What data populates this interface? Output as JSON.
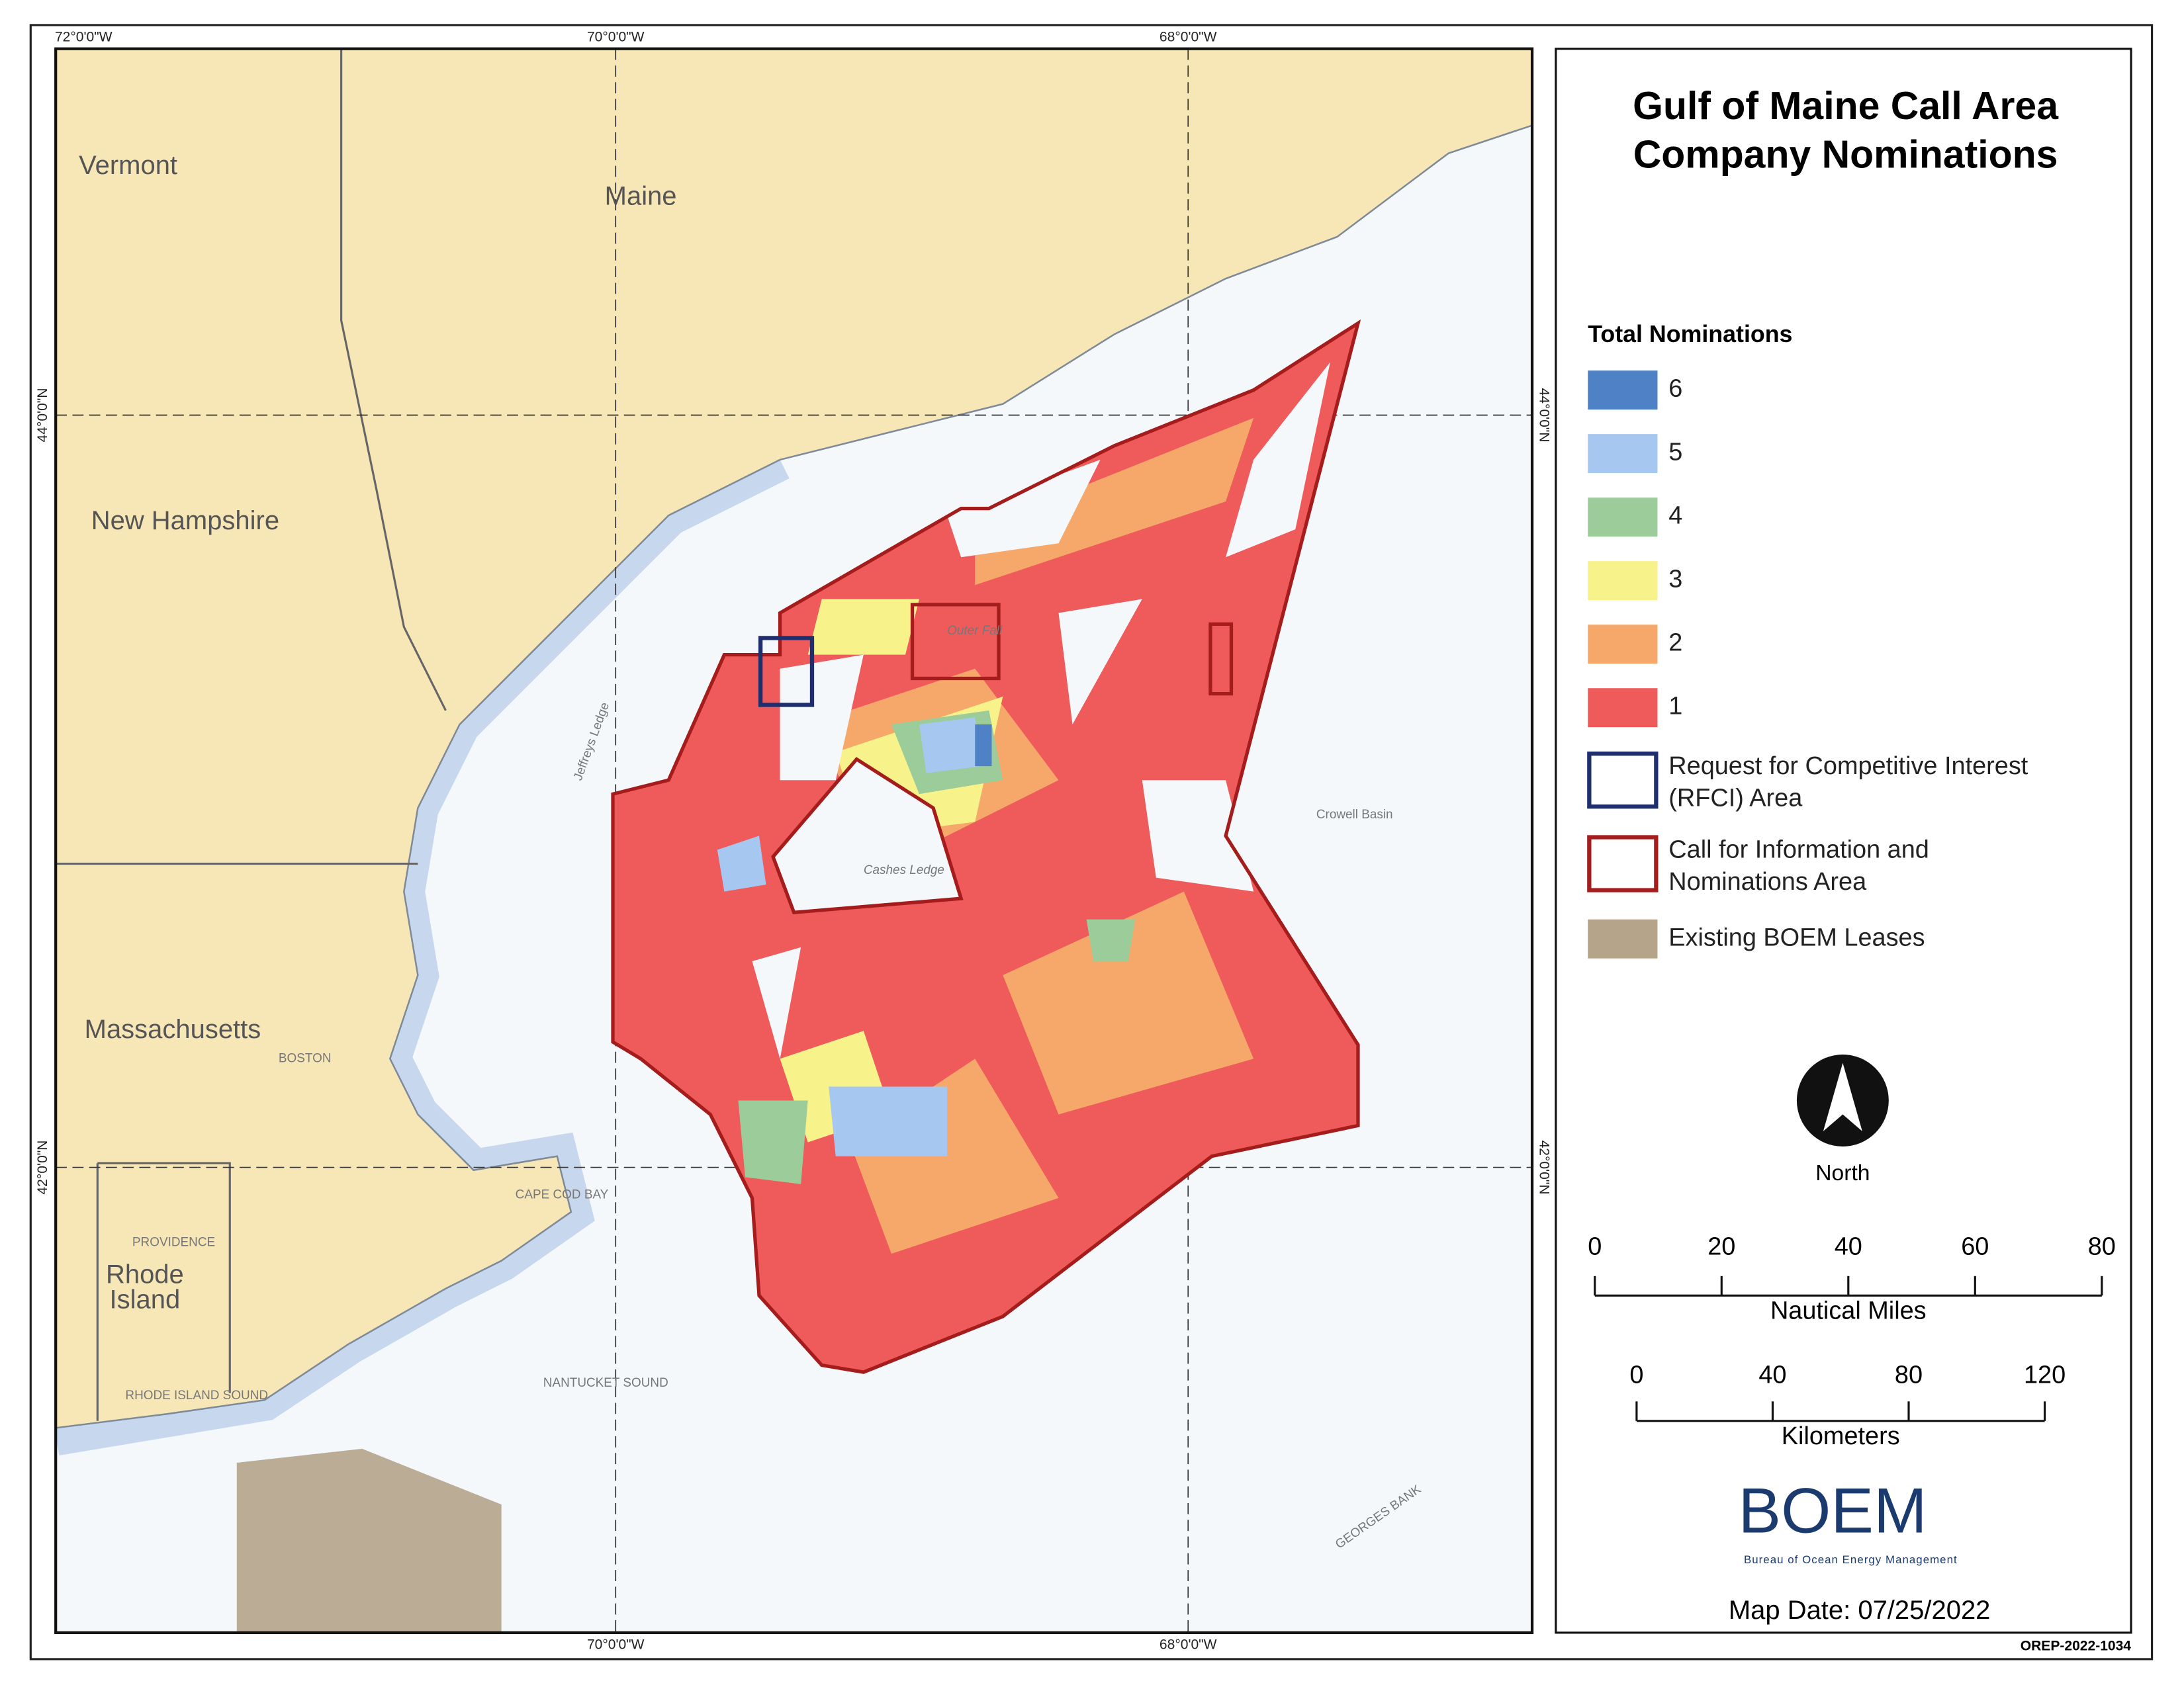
{
  "header": {
    "title_lines": [
      "Gulf of Maine Call Area",
      "Company Nominations"
    ]
  },
  "legend": {
    "heading": "Total Nominations",
    "nominations": [
      {
        "label": "6",
        "color": "#4f81c7"
      },
      {
        "label": "5",
        "color": "#a6c8f0"
      },
      {
        "label": "4",
        "color": "#9ccc9a"
      },
      {
        "label": "3",
        "color": "#f7f28a"
      },
      {
        "label": "2",
        "color": "#f6a86a"
      },
      {
        "label": "1",
        "color": "#ef5a5a"
      }
    ],
    "areas": [
      {
        "lines": [
          "Request for Competitive Interest",
          "(RFCI) Area"
        ],
        "stroke": "#1f2f6e"
      },
      {
        "lines": [
          "Call for Information and",
          "Nominations Area"
        ],
        "stroke": "#a51c1c"
      }
    ],
    "leases": {
      "label": "Existing BOEM Leases",
      "color": "#b5a48a"
    }
  },
  "north": "North",
  "scales": [
    {
      "label": "Nautical Miles",
      "ticks": [
        0,
        20,
        40,
        60,
        80
      ]
    },
    {
      "label": "Kilometers",
      "ticks": [
        0,
        40,
        80,
        120
      ]
    }
  ],
  "logo": {
    "name": "BOEM",
    "subtitle": "Bureau of Ocean Energy Management"
  },
  "map_date": "Map Date: 07/25/2022",
  "document_id": "OREP-2022-1034",
  "graticule": {
    "lon": [
      "72°0'0\"W",
      "70°0'0\"W",
      "68°0'0\"W"
    ],
    "lat": [
      "44°0'0\"N",
      "42°0'0\"N"
    ]
  },
  "places": {
    "states": [
      "Vermont",
      "Maine",
      "New Hampshire",
      "Massachusetts",
      "Rhode",
      "Island"
    ],
    "features": [
      "Cashes Ledge",
      "Crowell Basin",
      "Jeffreys Ledge",
      "Outer Fall",
      "BOSTON",
      "PROVIDENCE",
      "NANTUCKET SOUND",
      "RHODE ISLAND SOUND",
      "CAPE COD BAY",
      "GEORGES BANK"
    ]
  }
}
